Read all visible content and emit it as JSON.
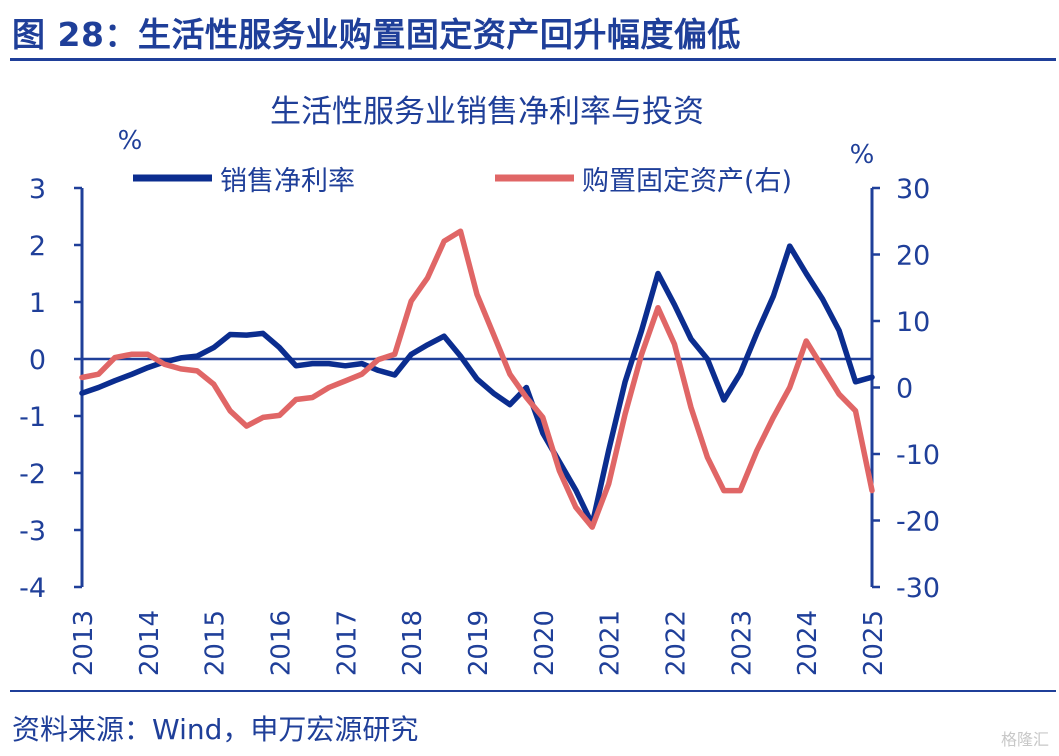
{
  "figure_title": "图 28：生活性服务业购置固定资产回升幅度偏低",
  "source_note": "资料来源：Wind，申万宏源研究",
  "watermark": "格隆汇",
  "colors": {
    "brand": "#1F3F99",
    "series1": "#0B2D8F",
    "series2": "#E06666"
  },
  "chart_data": {
    "type": "line",
    "title": "生活性服务业销售净利率与投资",
    "y_unit_left": "%",
    "y_unit_right": "%",
    "ylim_left": [
      -4,
      3
    ],
    "ylim_right": [
      -30,
      30
    ],
    "yticks_left": [
      "3",
      "2",
      "1",
      "0",
      "-1",
      "-2",
      "-3",
      "-4"
    ],
    "yticks_right": [
      "30",
      "20",
      "10",
      "0",
      "-10",
      "-20",
      "-30"
    ],
    "xticks": [
      "2013",
      "2014",
      "2015",
      "2016",
      "2017",
      "2018",
      "2019",
      "2020",
      "2021",
      "2022",
      "2023",
      "2024",
      "2025"
    ],
    "legend_position": "top",
    "grid": false,
    "series": [
      {
        "name": "销售净利率",
        "axis": "left",
        "color": "#0B2D8F",
        "x": [
          2013.0,
          2013.25,
          2013.5,
          2013.75,
          2014.0,
          2014.25,
          2014.5,
          2014.75,
          2015.0,
          2015.25,
          2015.5,
          2015.75,
          2016.0,
          2016.25,
          2016.5,
          2016.75,
          2017.0,
          2017.25,
          2017.5,
          2017.75,
          2018.0,
          2018.25,
          2018.5,
          2018.75,
          2019.0,
          2019.25,
          2019.5,
          2019.75,
          2020.0,
          2020.25,
          2020.5,
          2020.75,
          2021.0,
          2021.25,
          2021.5,
          2021.75,
          2022.0,
          2022.25,
          2022.5,
          2022.75,
          2023.0,
          2023.25,
          2023.5,
          2023.75,
          2024.0,
          2024.25,
          2024.5,
          2024.75,
          2025.0
        ],
        "values": [
          -0.6,
          -0.5,
          -0.38,
          -0.27,
          -0.15,
          -0.05,
          0.02,
          0.05,
          0.2,
          0.43,
          0.42,
          0.45,
          0.2,
          -0.12,
          -0.08,
          -0.08,
          -0.12,
          -0.08,
          -0.2,
          -0.28,
          0.08,
          0.25,
          0.4,
          0.05,
          -0.35,
          -0.6,
          -0.8,
          -0.5,
          -1.3,
          -1.8,
          -2.3,
          -2.9,
          -1.6,
          -0.4,
          0.5,
          1.5,
          0.95,
          0.35,
          0.0,
          -0.72,
          -0.25,
          0.45,
          1.1,
          1.98,
          1.5,
          1.05,
          0.5,
          -0.4,
          -0.32
        ]
      },
      {
        "name": "购置固定资产(右)",
        "axis": "right",
        "color": "#E06666",
        "x": [
          2013.0,
          2013.25,
          2013.5,
          2013.75,
          2014.0,
          2014.25,
          2014.5,
          2014.75,
          2015.0,
          2015.25,
          2015.5,
          2015.75,
          2016.0,
          2016.25,
          2016.5,
          2016.75,
          2017.0,
          2017.25,
          2017.5,
          2017.75,
          2018.0,
          2018.25,
          2018.5,
          2018.75,
          2019.0,
          2019.25,
          2019.5,
          2019.75,
          2020.0,
          2020.25,
          2020.5,
          2020.75,
          2021.0,
          2021.25,
          2021.5,
          2021.75,
          2022.0,
          2022.25,
          2022.5,
          2022.75,
          2023.0,
          2023.25,
          2023.5,
          2023.75,
          2024.0,
          2024.25,
          2024.5,
          2024.75,
          2025.0
        ],
        "values": [
          1.5,
          2.0,
          4.5,
          5.0,
          5.0,
          3.5,
          2.8,
          2.5,
          0.5,
          -3.5,
          -5.8,
          -4.5,
          -4.2,
          -1.8,
          -1.5,
          0.0,
          1.0,
          2.0,
          4.2,
          5.0,
          13.0,
          16.5,
          22.0,
          23.5,
          14.0,
          8.0,
          2.0,
          -1.5,
          -4.5,
          -12.5,
          -18.0,
          -21.0,
          -14.5,
          -4.0,
          5.0,
          12.0,
          6.5,
          -3.0,
          -10.5,
          -15.5,
          -15.5,
          -9.5,
          -4.5,
          0.0,
          7.0,
          3.0,
          -1.0,
          -3.5,
          -15.5
        ]
      }
    ]
  }
}
